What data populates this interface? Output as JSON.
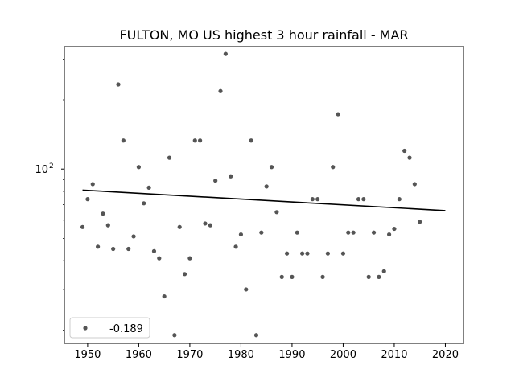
{
  "chart_data": {
    "type": "scatter",
    "title": "FULTON, MO US highest 3 hour rainfall - MAR",
    "xlabel": "",
    "ylabel": "",
    "y_scale": "log",
    "xlim": [
      1945.45,
      2023.55
    ],
    "ylim": [
      17.5,
      340
    ],
    "x_ticks": [
      1950,
      1960,
      1970,
      1980,
      1990,
      2000,
      2010,
      2020
    ],
    "x_tick_labels": [
      "1950",
      "1960",
      "1970",
      "1980",
      "1990",
      "2000",
      "2010",
      "2020"
    ],
    "y_ticks": [
      100
    ],
    "y_tick_labels": [
      "10^2"
    ],
    "grid": false,
    "legend_position": "lower-left",
    "colors": {
      "points": "#555555",
      "trend": "#000000"
    },
    "series": [
      {
        "name": "-0.189",
        "points": [
          [
            1949,
            56
          ],
          [
            1950,
            74
          ],
          [
            1951,
            86
          ],
          [
            1952,
            46
          ],
          [
            1953,
            64
          ],
          [
            1954,
            57
          ],
          [
            1955,
            45
          ],
          [
            1956,
            233
          ],
          [
            1957,
            133
          ],
          [
            1958,
            45
          ],
          [
            1959,
            51
          ],
          [
            1960,
            102
          ],
          [
            1961,
            71
          ],
          [
            1962,
            83
          ],
          [
            1963,
            44
          ],
          [
            1964,
            41
          ],
          [
            1965,
            28
          ],
          [
            1966,
            112
          ],
          [
            1967,
            19
          ],
          [
            1968,
            56
          ],
          [
            1969,
            35
          ],
          [
            1970,
            41
          ],
          [
            1971,
            133
          ],
          [
            1972,
            133
          ],
          [
            1973,
            58
          ],
          [
            1974,
            57
          ],
          [
            1975,
            89
          ],
          [
            1976,
            218
          ],
          [
            1977,
            316
          ],
          [
            1978,
            93
          ],
          [
            1979,
            46
          ],
          [
            1980,
            52
          ],
          [
            1981,
            30
          ],
          [
            1982,
            133
          ],
          [
            1983,
            19
          ],
          [
            1984,
            53
          ],
          [
            1985,
            84
          ],
          [
            1986,
            102
          ],
          [
            1987,
            65
          ],
          [
            1988,
            34
          ],
          [
            1989,
            43
          ],
          [
            1990,
            34
          ],
          [
            1991,
            53
          ],
          [
            1992,
            43
          ],
          [
            1993,
            43
          ],
          [
            1994,
            74
          ],
          [
            1995,
            74
          ],
          [
            1996,
            34
          ],
          [
            1997,
            43
          ],
          [
            1998,
            102
          ],
          [
            1999,
            173
          ],
          [
            2000,
            43
          ],
          [
            2001,
            53
          ],
          [
            2002,
            53
          ],
          [
            2003,
            74
          ],
          [
            2004,
            74
          ],
          [
            2005,
            34
          ],
          [
            2006,
            53
          ],
          [
            2007,
            34
          ],
          [
            2008,
            36
          ],
          [
            2009,
            52
          ],
          [
            2010,
            55
          ],
          [
            2011,
            74
          ],
          [
            2012,
            120
          ],
          [
            2013,
            112
          ],
          [
            2014,
            86
          ],
          [
            2015,
            59
          ]
        ]
      }
    ],
    "trend": {
      "x": [
        1949,
        2020
      ],
      "y": [
        81,
        66
      ]
    }
  }
}
